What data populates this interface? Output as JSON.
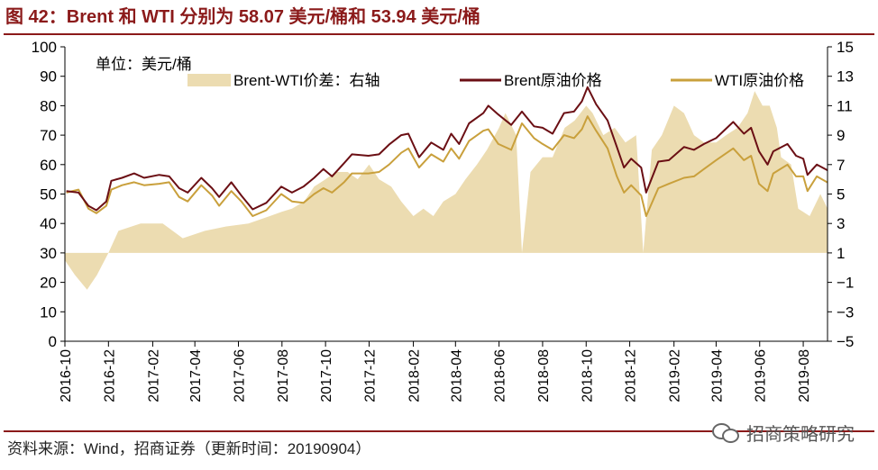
{
  "title": "图 42：Brent 和 WTI 分别为 58.07 美元/桶和 53.94 美元/桶",
  "source": "资料来源：Wind，招商证券（更新时间：20190904）",
  "watermark": "招商策略研究",
  "watermark_icon": "wechat-icon",
  "colors": {
    "title": "#8b1a1a",
    "brent": "#6b0f14",
    "wti": "#c9a03c",
    "spread": "#ecdcb1",
    "axis": "#000000"
  },
  "chart_data": {
    "type": "line",
    "unit_label": "单位：美元/桶",
    "legend": [
      "Brent-WTI价差：右轴",
      "Brent原油价格",
      "WTI原油价格"
    ],
    "legend_placement": "top",
    "y_left": {
      "min": 0,
      "max": 100,
      "ticks": [
        0,
        10,
        20,
        30,
        40,
        50,
        60,
        70,
        80,
        90,
        100
      ]
    },
    "y_right": {
      "min": -5,
      "max": 15,
      "ticks": [
        -5,
        -3,
        -1,
        1,
        3,
        5,
        7,
        9,
        11,
        13,
        15
      ]
    },
    "x_ticks": [
      "2016-10",
      "2016-12",
      "2017-02",
      "2017-04",
      "2017-06",
      "2017-08",
      "2017-10",
      "2017-12",
      "2018-02",
      "2018-04",
      "2018-06",
      "2018-08",
      "2018-10",
      "2018-12",
      "2019-02",
      "2019-04",
      "2019-06",
      "2019-08"
    ],
    "x_range": [
      "2016-10-01",
      "2019-09-04"
    ],
    "grid": false,
    "series": [
      {
        "name": "Brent原油价格",
        "axis": "left",
        "type": "line",
        "points": [
          [
            "2016-10-03",
            51.0
          ],
          [
            "2016-10-20",
            50.5
          ],
          [
            "2016-11-03",
            46.0
          ],
          [
            "2016-11-14",
            44.5
          ],
          [
            "2016-11-28",
            47.5
          ],
          [
            "2016-12-05",
            54.5
          ],
          [
            "2016-12-20",
            55.5
          ],
          [
            "2017-01-06",
            57.0
          ],
          [
            "2017-01-20",
            55.5
          ],
          [
            "2017-02-10",
            56.5
          ],
          [
            "2017-02-24",
            56.0
          ],
          [
            "2017-03-10",
            52.0
          ],
          [
            "2017-03-22",
            50.5
          ],
          [
            "2017-04-10",
            55.5
          ],
          [
            "2017-04-25",
            52.0
          ],
          [
            "2017-05-05",
            49.0
          ],
          [
            "2017-05-22",
            54.0
          ],
          [
            "2017-06-05",
            49.5
          ],
          [
            "2017-06-21",
            44.8
          ],
          [
            "2017-07-10",
            47.0
          ],
          [
            "2017-07-31",
            52.5
          ],
          [
            "2017-08-15",
            50.5
          ],
          [
            "2017-08-31",
            52.5
          ],
          [
            "2017-09-15",
            55.5
          ],
          [
            "2017-09-28",
            58.5
          ],
          [
            "2017-10-10",
            56.0
          ],
          [
            "2017-10-27",
            60.5
          ],
          [
            "2017-11-07",
            63.5
          ],
          [
            "2017-11-30",
            63.0
          ],
          [
            "2017-12-15",
            63.5
          ],
          [
            "2017-12-29",
            66.8
          ],
          [
            "2018-01-15",
            70.0
          ],
          [
            "2018-01-25",
            70.5
          ],
          [
            "2018-02-09",
            62.5
          ],
          [
            "2018-02-26",
            67.5
          ],
          [
            "2018-03-15",
            65.0
          ],
          [
            "2018-03-26",
            70.5
          ],
          [
            "2018-04-06",
            67.0
          ],
          [
            "2018-04-20",
            74.0
          ],
          [
            "2018-05-10",
            77.5
          ],
          [
            "2018-05-17",
            80.0
          ],
          [
            "2018-05-31",
            77.0
          ],
          [
            "2018-06-18",
            73.5
          ],
          [
            "2018-07-03",
            78.0
          ],
          [
            "2018-07-20",
            73.0
          ],
          [
            "2018-08-01",
            72.5
          ],
          [
            "2018-08-15",
            70.5
          ],
          [
            "2018-08-31",
            77.5
          ],
          [
            "2018-09-14",
            78.0
          ],
          [
            "2018-09-25",
            81.5
          ],
          [
            "2018-10-03",
            86.3
          ],
          [
            "2018-10-15",
            80.5
          ],
          [
            "2018-10-31",
            75.0
          ],
          [
            "2018-11-13",
            66.0
          ],
          [
            "2018-11-23",
            59.0
          ],
          [
            "2018-12-03",
            62.0
          ],
          [
            "2018-12-17",
            59.0
          ],
          [
            "2018-12-24",
            50.5
          ],
          [
            "2019-01-10",
            61.0
          ],
          [
            "2019-01-25",
            61.5
          ],
          [
            "2019-02-15",
            66.0
          ],
          [
            "2019-03-01",
            65.0
          ],
          [
            "2019-03-15",
            67.0
          ],
          [
            "2019-04-01",
            69.0
          ],
          [
            "2019-04-25",
            74.5
          ],
          [
            "2019-05-10",
            70.5
          ],
          [
            "2019-05-20",
            72.5
          ],
          [
            "2019-05-31",
            64.5
          ],
          [
            "2019-06-12",
            60.0
          ],
          [
            "2019-06-20",
            64.5
          ],
          [
            "2019-07-10",
            67.0
          ],
          [
            "2019-07-22",
            63.0
          ],
          [
            "2019-08-01",
            62.0
          ],
          [
            "2019-08-07",
            56.5
          ],
          [
            "2019-08-20",
            60.0
          ],
          [
            "2019-09-04",
            58.07
          ]
        ]
      },
      {
        "name": "WTI原油价格",
        "axis": "left",
        "type": "line",
        "points": [
          [
            "2016-10-03",
            50.5
          ],
          [
            "2016-10-20",
            51.5
          ],
          [
            "2016-11-03",
            45.0
          ],
          [
            "2016-11-14",
            43.5
          ],
          [
            "2016-11-28",
            46.0
          ],
          [
            "2016-12-05",
            51.5
          ],
          [
            "2016-12-20",
            53.0
          ],
          [
            "2017-01-06",
            54.0
          ],
          [
            "2017-01-20",
            53.0
          ],
          [
            "2017-02-10",
            53.5
          ],
          [
            "2017-02-24",
            54.0
          ],
          [
            "2017-03-10",
            49.0
          ],
          [
            "2017-03-22",
            47.5
          ],
          [
            "2017-04-10",
            53.0
          ],
          [
            "2017-04-25",
            49.5
          ],
          [
            "2017-05-05",
            46.0
          ],
          [
            "2017-05-22",
            51.0
          ],
          [
            "2017-06-05",
            47.5
          ],
          [
            "2017-06-21",
            42.5
          ],
          [
            "2017-07-10",
            44.5
          ],
          [
            "2017-07-31",
            50.0
          ],
          [
            "2017-08-15",
            47.5
          ],
          [
            "2017-08-31",
            47.0
          ],
          [
            "2017-09-15",
            50.0
          ],
          [
            "2017-09-28",
            52.0
          ],
          [
            "2017-10-10",
            50.5
          ],
          [
            "2017-10-27",
            54.0
          ],
          [
            "2017-11-07",
            57.0
          ],
          [
            "2017-11-30",
            57.0
          ],
          [
            "2017-12-15",
            57.5
          ],
          [
            "2017-12-29",
            60.0
          ],
          [
            "2018-01-15",
            64.0
          ],
          [
            "2018-01-25",
            65.5
          ],
          [
            "2018-02-09",
            59.0
          ],
          [
            "2018-02-26",
            63.5
          ],
          [
            "2018-03-15",
            61.0
          ],
          [
            "2018-03-26",
            65.5
          ],
          [
            "2018-04-06",
            62.0
          ],
          [
            "2018-04-20",
            68.0
          ],
          [
            "2018-05-10",
            71.5
          ],
          [
            "2018-05-17",
            72.0
          ],
          [
            "2018-05-31",
            67.0
          ],
          [
            "2018-06-18",
            65.0
          ],
          [
            "2018-07-03",
            74.0
          ],
          [
            "2018-07-20",
            69.0
          ],
          [
            "2018-08-01",
            67.0
          ],
          [
            "2018-08-15",
            65.0
          ],
          [
            "2018-08-31",
            70.0
          ],
          [
            "2018-09-14",
            69.0
          ],
          [
            "2018-09-25",
            72.0
          ],
          [
            "2018-10-03",
            76.4
          ],
          [
            "2018-10-15",
            71.5
          ],
          [
            "2018-10-31",
            65.5
          ],
          [
            "2018-11-13",
            56.0
          ],
          [
            "2018-11-23",
            50.5
          ],
          [
            "2018-12-03",
            53.0
          ],
          [
            "2018-12-17",
            49.5
          ],
          [
            "2018-12-24",
            42.5
          ],
          [
            "2019-01-10",
            52.0
          ],
          [
            "2019-01-25",
            53.5
          ],
          [
            "2019-02-15",
            55.5
          ],
          [
            "2019-03-01",
            56.0
          ],
          [
            "2019-03-15",
            58.5
          ],
          [
            "2019-04-01",
            61.5
          ],
          [
            "2019-04-25",
            65.5
          ],
          [
            "2019-05-10",
            61.5
          ],
          [
            "2019-05-20",
            63.0
          ],
          [
            "2019-05-31",
            53.5
          ],
          [
            "2019-06-12",
            51.0
          ],
          [
            "2019-06-20",
            57.0
          ],
          [
            "2019-07-10",
            60.0
          ],
          [
            "2019-07-22",
            56.0
          ],
          [
            "2019-08-01",
            56.0
          ],
          [
            "2019-08-07",
            51.0
          ],
          [
            "2019-08-20",
            56.0
          ],
          [
            "2019-09-04",
            53.94
          ]
        ]
      },
      {
        "name": "Brent-WTI价差：右轴",
        "axis": "right",
        "type": "area",
        "points": [
          [
            "2016-10-01",
            0.5
          ],
          [
            "2016-10-15",
            -0.5
          ],
          [
            "2016-11-01",
            -1.5
          ],
          [
            "2016-11-15",
            -0.5
          ],
          [
            "2016-12-01",
            1.0
          ],
          [
            "2016-12-15",
            2.5
          ],
          [
            "2017-01-15",
            3.0
          ],
          [
            "2017-02-15",
            3.0
          ],
          [
            "2017-03-15",
            2.0
          ],
          [
            "2017-04-15",
            2.5
          ],
          [
            "2017-05-15",
            2.8
          ],
          [
            "2017-06-15",
            3.0
          ],
          [
            "2017-07-15",
            3.5
          ],
          [
            "2017-08-01",
            3.8
          ],
          [
            "2017-08-15",
            4.0
          ],
          [
            "2017-09-01",
            4.5
          ],
          [
            "2017-09-15",
            5.5
          ],
          [
            "2017-10-01",
            6.0
          ],
          [
            "2017-10-15",
            6.5
          ],
          [
            "2017-11-01",
            6.5
          ],
          [
            "2017-11-15",
            6.0
          ],
          [
            "2017-12-01",
            7.0
          ],
          [
            "2017-12-15",
            6.0
          ],
          [
            "2018-01-01",
            5.5
          ],
          [
            "2018-01-15",
            4.5
          ],
          [
            "2018-02-01",
            3.5
          ],
          [
            "2018-02-15",
            4.0
          ],
          [
            "2018-03-01",
            3.5
          ],
          [
            "2018-03-15",
            4.5
          ],
          [
            "2018-04-01",
            5.0
          ],
          [
            "2018-04-15",
            6.0
          ],
          [
            "2018-05-01",
            7.0
          ],
          [
            "2018-05-15",
            8.0
          ],
          [
            "2018-06-01",
            9.5
          ],
          [
            "2018-06-10",
            10.5
          ],
          [
            "2018-06-25",
            9.0
          ],
          [
            "2018-07-03",
            1.0
          ],
          [
            "2018-07-15",
            6.5
          ],
          [
            "2018-08-01",
            7.5
          ],
          [
            "2018-08-15",
            7.5
          ],
          [
            "2018-09-01",
            9.5
          ],
          [
            "2018-09-15",
            10.0
          ],
          [
            "2018-10-01",
            11.0
          ],
          [
            "2018-10-10",
            10.5
          ],
          [
            "2018-10-25",
            9.0
          ],
          [
            "2018-11-10",
            9.5
          ],
          [
            "2018-11-25",
            8.5
          ],
          [
            "2018-12-10",
            9.0
          ],
          [
            "2018-12-20",
            1.0
          ],
          [
            "2019-01-01",
            8.0
          ],
          [
            "2019-01-15",
            9.0
          ],
          [
            "2019-02-01",
            11.0
          ],
          [
            "2019-02-15",
            10.5
          ],
          [
            "2019-03-01",
            9.0
          ],
          [
            "2019-03-15",
            8.5
          ],
          [
            "2019-04-01",
            8.5
          ],
          [
            "2019-04-15",
            9.0
          ],
          [
            "2019-05-01",
            9.5
          ],
          [
            "2019-05-15",
            10.5
          ],
          [
            "2019-05-25",
            12.0
          ],
          [
            "2019-06-05",
            11.0
          ],
          [
            "2019-06-15",
            11.0
          ],
          [
            "2019-06-25",
            9.5
          ],
          [
            "2019-07-01",
            7.5
          ],
          [
            "2019-07-15",
            7.0
          ],
          [
            "2019-07-25",
            4.0
          ],
          [
            "2019-08-10",
            3.5
          ],
          [
            "2019-08-25",
            5.0
          ],
          [
            "2019-09-04",
            4.0
          ]
        ]
      }
    ]
  }
}
